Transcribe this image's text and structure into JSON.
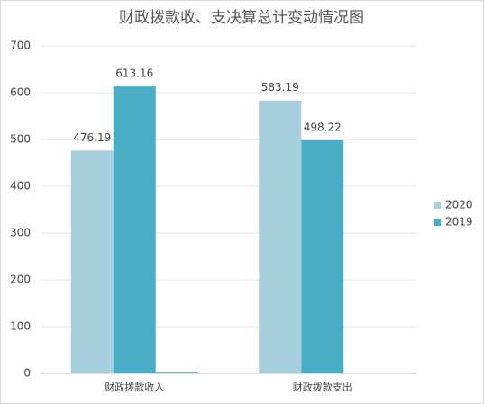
{
  "chart_data": {
    "type": "bar",
    "title": "财政拨款收、支决算总计变动情况图",
    "categories": [
      "财政拨款收入",
      "财政拨款支出"
    ],
    "series": [
      {
        "name": "2020",
        "color": "#a8cfdd",
        "values": [
          476.19,
          583.19
        ]
      },
      {
        "name": "2019",
        "color": "#4aadc6",
        "values": [
          613.16,
          498.22
        ]
      },
      {
        "color": "#2f6f80",
        "values": [
          3,
          null
        ]
      }
    ],
    "ylim": [
      0,
      700
    ],
    "yticks": [
      0,
      100,
      200,
      300,
      400,
      500,
      600,
      700
    ],
    "grid": true,
    "legend": "right"
  }
}
